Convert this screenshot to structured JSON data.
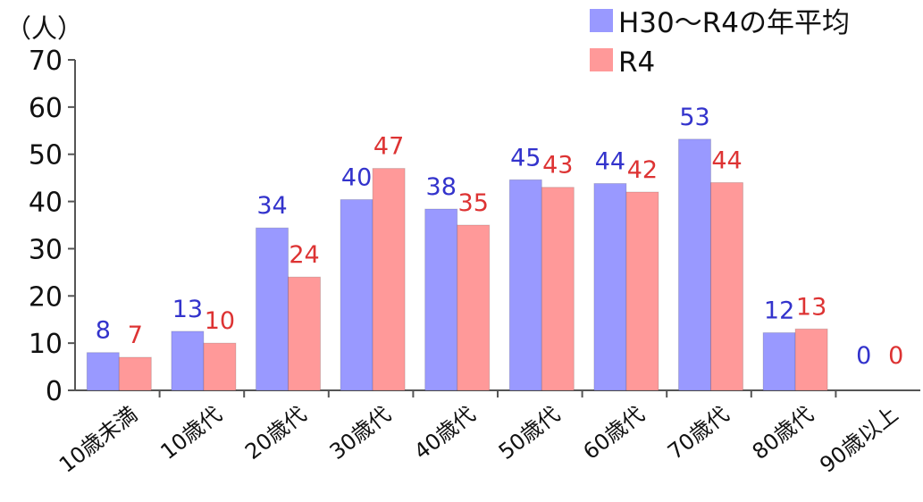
{
  "chart_data": {
    "type": "bar",
    "ylabel": "（人）",
    "ylim": [
      0,
      70
    ],
    "yticks": [
      0,
      10,
      20,
      30,
      40,
      50,
      60,
      70
    ],
    "grid": false,
    "legend_position": "top-right",
    "categories": [
      "10歳未満",
      "10歳代",
      "20歳代",
      "30歳代",
      "40歳代",
      "50歳代",
      "60歳代",
      "70歳代",
      "80歳代",
      "90歳以上"
    ],
    "series": [
      {
        "name": "H30～R4の年平均",
        "color": "#9999ff",
        "label_color": "#3333cc",
        "values": [
          8,
          12.5,
          34.4,
          40.4,
          38.4,
          44.6,
          43.8,
          53.2,
          12.2,
          0
        ],
        "labels": [
          "8",
          "13",
          "34",
          "40",
          "38",
          "45",
          "44",
          "53",
          "12",
          "0"
        ]
      },
      {
        "name": "R4",
        "color": "#ff9999",
        "label_color": "#dd3333",
        "values": [
          7,
          10,
          24,
          47,
          35,
          43,
          42,
          44,
          13,
          0
        ],
        "labels": [
          "7",
          "10",
          "24",
          "47",
          "35",
          "43",
          "42",
          "44",
          "13",
          "0"
        ]
      }
    ]
  }
}
